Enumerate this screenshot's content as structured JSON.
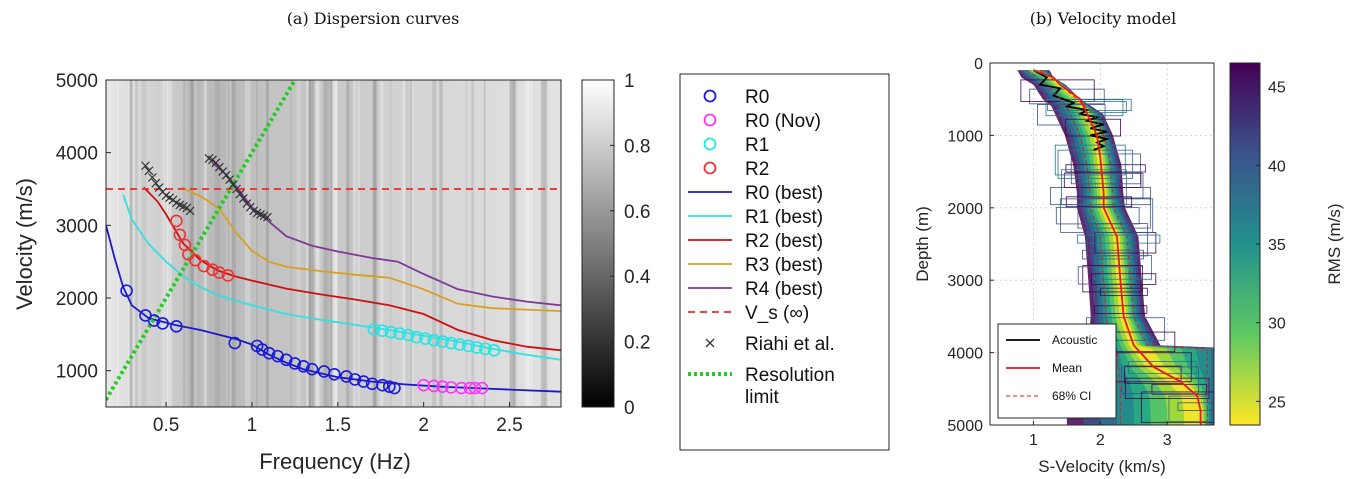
{
  "chart_data": [
    {
      "type": "line",
      "title": "(a) Dispersion curves",
      "xlabel": "Frequency (Hz)",
      "ylabel": "Velocity (m/s)",
      "xlim": [
        0.15,
        2.8
      ],
      "ylim": [
        500,
        5000
      ],
      "xticks": [
        "0.5",
        "1",
        "1.5",
        "2",
        "2.5"
      ],
      "yticks": [
        "1000",
        "2000",
        "3000",
        "4000",
        "5000"
      ],
      "background": "grayscale image",
      "colorbar": {
        "ticks": [
          "0",
          "0.2",
          "0.4",
          "0.6",
          "0.8",
          "1"
        ],
        "range": [
          0,
          1
        ]
      },
      "legend_position": "outside-right",
      "series": [
        {
          "name": "R0",
          "style": "marker-circle",
          "color": "#1a1adb",
          "x": [
            0.27,
            0.38,
            0.43,
            0.48,
            0.56,
            0.9,
            1.03,
            1.06,
            1.1,
            1.15,
            1.2,
            1.25,
            1.3,
            1.35,
            1.42,
            1.48,
            1.55,
            1.6,
            1.65,
            1.7,
            1.76,
            1.8,
            1.83
          ],
          "y": [
            2100,
            1760,
            1690,
            1650,
            1610,
            1380,
            1340,
            1290,
            1240,
            1200,
            1150,
            1100,
            1060,
            1020,
            990,
            950,
            920,
            880,
            850,
            820,
            800,
            780,
            760
          ]
        },
        {
          "name": "R0 (Nov)",
          "style": "marker-circle",
          "color": "#ff33ff",
          "x": [
            2.0,
            2.06,
            2.11,
            2.16,
            2.22,
            2.27,
            2.3,
            2.34
          ],
          "y": [
            800,
            790,
            780,
            770,
            760,
            760,
            760,
            760
          ]
        },
        {
          "name": "R1",
          "style": "marker-circle",
          "color": "#22e5e5",
          "x": [
            1.71,
            1.76,
            1.81,
            1.86,
            1.91,
            1.96,
            2.01,
            2.06,
            2.11,
            2.16,
            2.21,
            2.26,
            2.31,
            2.36,
            2.41
          ],
          "y": [
            1570,
            1550,
            1530,
            1510,
            1490,
            1460,
            1440,
            1420,
            1400,
            1380,
            1360,
            1340,
            1320,
            1300,
            1280
          ]
        },
        {
          "name": "R2",
          "style": "marker-circle",
          "color": "#ee3333",
          "x": [
            0.56,
            0.58,
            0.61,
            0.63,
            0.67,
            0.72,
            0.77,
            0.81,
            0.86
          ],
          "y": [
            3060,
            2870,
            2730,
            2600,
            2520,
            2440,
            2390,
            2350,
            2310
          ]
        },
        {
          "name": "R0 (best)",
          "style": "line",
          "color": "#1a1ac8",
          "x": [
            0.15,
            0.2,
            0.25,
            0.3,
            0.4,
            0.55,
            0.7,
            0.9,
            1.0,
            1.1,
            1.2,
            1.3,
            1.5,
            1.7,
            1.9,
            2.1,
            2.3,
            2.5,
            2.8
          ],
          "y": [
            3000,
            2550,
            2150,
            1900,
            1720,
            1630,
            1560,
            1440,
            1360,
            1220,
            1110,
            1020,
            910,
            850,
            810,
            780,
            760,
            740,
            710
          ]
        },
        {
          "name": "R1 (best)",
          "style": "line",
          "color": "#33e0e0",
          "x": [
            0.25,
            0.3,
            0.4,
            0.5,
            0.6,
            0.7,
            0.8,
            1.0,
            1.2,
            1.4,
            1.6,
            1.8,
            2.0,
            2.2,
            2.4,
            2.6,
            2.8
          ],
          "y": [
            3420,
            3080,
            2740,
            2500,
            2300,
            2150,
            2040,
            1900,
            1780,
            1700,
            1630,
            1560,
            1480,
            1400,
            1300,
            1220,
            1150
          ]
        },
        {
          "name": "R2 (best)",
          "style": "line",
          "color": "#cc1111",
          "x": [
            0.37,
            0.45,
            0.5,
            0.55,
            0.6,
            0.7,
            0.8,
            0.9,
            1.0,
            1.2,
            1.4,
            1.6,
            1.8,
            2.0,
            2.2,
            2.4,
            2.6,
            2.8
          ],
          "y": [
            3520,
            3330,
            3150,
            2950,
            2750,
            2520,
            2380,
            2300,
            2240,
            2130,
            2050,
            1980,
            1900,
            1780,
            1560,
            1420,
            1330,
            1280
          ]
        },
        {
          "name": "R3 (best)",
          "style": "line",
          "color": "#d9a020",
          "x": [
            0.59,
            0.7,
            0.8,
            0.85,
            0.9,
            1.0,
            1.1,
            1.2,
            1.4,
            1.6,
            1.8,
            2.0,
            2.2,
            2.4,
            2.6,
            2.8
          ],
          "y": [
            3520,
            3400,
            3250,
            3100,
            2920,
            2650,
            2500,
            2430,
            2370,
            2320,
            2280,
            2120,
            1920,
            1860,
            1840,
            1820
          ]
        },
        {
          "name": "R4 (best)",
          "style": "line",
          "color": "#7e3a96",
          "x": [
            0.77,
            0.85,
            0.92,
            1.0,
            1.1,
            1.2,
            1.35,
            1.5,
            1.7,
            1.85,
            2.0,
            2.2,
            2.4,
            2.6,
            2.8
          ],
          "y": [
            3860,
            3700,
            3500,
            3250,
            3050,
            2850,
            2720,
            2640,
            2550,
            2500,
            2330,
            2120,
            2020,
            1950,
            1900
          ]
        },
        {
          "name": "V_s (∞)",
          "style": "dashed-line",
          "color": "#e82c2c",
          "x": [
            0.15,
            2.8
          ],
          "y": [
            3500,
            3500
          ]
        },
        {
          "name": "Riahi et al.",
          "style": "marker-x",
          "color": "#333333",
          "x": [
            0.38,
            0.4,
            0.42,
            0.44,
            0.46,
            0.48,
            0.5,
            0.52,
            0.54,
            0.56,
            0.58,
            0.6,
            0.62,
            0.64,
            0.75,
            0.77,
            0.79,
            0.81,
            0.83,
            0.85,
            0.87,
            0.89,
            0.91,
            0.93,
            0.95,
            0.97,
            0.99,
            1.01,
            1.03,
            1.05,
            1.07,
            1.09
          ],
          "y": [
            3820,
            3750,
            3660,
            3580,
            3520,
            3460,
            3410,
            3380,
            3350,
            3310,
            3280,
            3260,
            3240,
            3200,
            3920,
            3900,
            3860,
            3800,
            3740,
            3690,
            3630,
            3560,
            3500,
            3430,
            3370,
            3300,
            3250,
            3200,
            3170,
            3150,
            3130,
            3110
          ]
        },
        {
          "name": "Resolution limit",
          "style": "dotted-line",
          "color": "#22cc22",
          "x": [
            0.15,
            1.25
          ],
          "y": [
            600,
            5000
          ]
        }
      ]
    },
    {
      "type": "line",
      "title": "(b) Velocity model",
      "xlabel": "S-Velocity (km/s)",
      "ylabel": "Depth (m)",
      "xlim": [
        0.35,
        3.7
      ],
      "ylim": [
        5000,
        0
      ],
      "xticks": [
        "1",
        "2",
        "3"
      ],
      "yticks": [
        "0",
        "1000",
        "2000",
        "3000",
        "4000",
        "5000"
      ],
      "grid": true,
      "colorbar": {
        "label": "RMS (m/s)",
        "ticks": [
          "25",
          "30",
          "35",
          "40",
          "45"
        ],
        "range": [
          23.5,
          46.5
        ]
      },
      "legend_position": "bottom-left",
      "series": [
        {
          "name": "Acoustic",
          "style": "line",
          "color": "#000000",
          "x": [
            1.0,
            1.2,
            1.1,
            1.4,
            1.3,
            1.6,
            1.5,
            1.8,
            1.7,
            1.95,
            1.8,
            2.05,
            1.85,
            2.1,
            1.85,
            2.1,
            1.95,
            2.05,
            1.9
          ],
          "y": [
            100,
            200,
            300,
            350,
            450,
            550,
            600,
            650,
            700,
            750,
            800,
            850,
            900,
            950,
            1000,
            1050,
            1100,
            1150,
            1200
          ]
        },
        {
          "name": "Mean",
          "style": "line",
          "color": "#e01c1c",
          "x": [
            1.0,
            1.3,
            1.4,
            1.7,
            1.85,
            1.95,
            2.0,
            2.05,
            2.05,
            2.25,
            2.3,
            2.35,
            2.5,
            2.8,
            3.2,
            3.45,
            3.5,
            3.5
          ],
          "y": [
            100,
            200,
            300,
            500,
            800,
            1000,
            1300,
            1800,
            2000,
            2400,
            3000,
            3500,
            3900,
            4200,
            4400,
            4600,
            4800,
            5000
          ]
        },
        {
          "name": "68% CI",
          "style": "dashed-line",
          "color": "#e01c1c",
          "x": [
            0.9,
            1.2,
            1.5,
            1.7,
            1.8,
            1.85,
            1.85,
            2.0,
            2.05,
            2.1,
            2.25,
            2.3,
            2.3
          ],
          "y": [
            100,
            300,
            600,
            1000,
            1400,
            1800,
            2000,
            2400,
            3000,
            3600,
            4000,
            4500,
            5000
          ]
        },
        {
          "name": "",
          "style": "dashed-line",
          "color": "#e01c1c",
          "x": [
            1.1,
            1.4,
            1.9,
            2.05,
            2.15,
            2.2,
            2.4,
            2.45,
            2.5,
            2.7,
            3.6,
            3.6
          ],
          "y": [
            100,
            300,
            700,
            1000,
            1400,
            2000,
            2400,
            3000,
            3500,
            3900,
            3950,
            5000
          ]
        }
      ]
    }
  ]
}
